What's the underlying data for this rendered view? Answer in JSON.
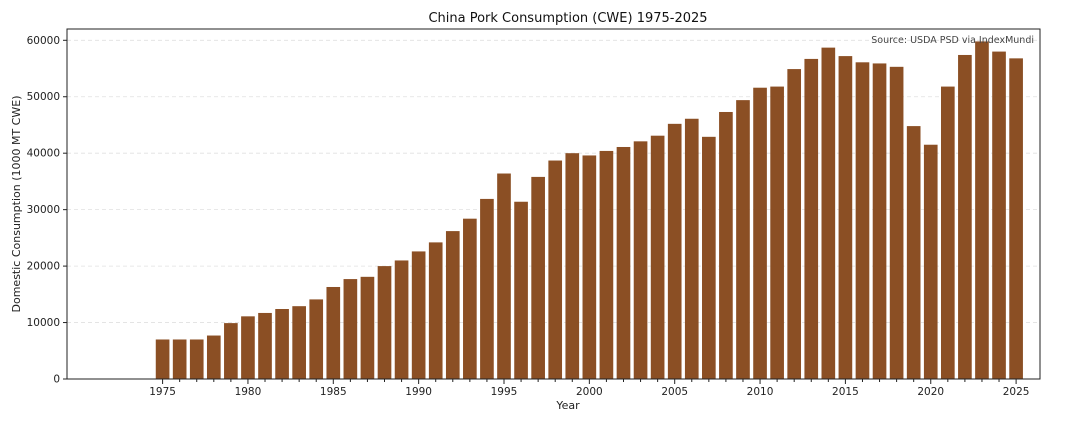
{
  "chart_data": {
    "type": "bar",
    "title": "China Pork Consumption (CWE) 1975-2025",
    "xlabel": "Year",
    "ylabel": "Domestic Consumption (1000 MT CWE)",
    "source_note": "Source: USDA PSD via IndexMundi",
    "ylim": [
      0,
      62000
    ],
    "xlim": [
      1969.4,
      2026.4
    ],
    "grid": true,
    "bar_color": "#8b4f24",
    "years": [
      1975,
      1976,
      1977,
      1978,
      1979,
      1980,
      1981,
      1982,
      1983,
      1984,
      1985,
      1986,
      1987,
      1988,
      1989,
      1990,
      1991,
      1992,
      1993,
      1994,
      1995,
      1996,
      1997,
      1998,
      1999,
      2000,
      2001,
      2002,
      2003,
      2004,
      2005,
      2006,
      2007,
      2008,
      2009,
      2010,
      2011,
      2012,
      2013,
      2014,
      2015,
      2016,
      2017,
      2018,
      2019,
      2020,
      2021,
      2022,
      2023,
      2024,
      2025
    ],
    "values": [
      7000,
      7000,
      7000,
      7700,
      9900,
      11100,
      11700,
      12400,
      12900,
      14100,
      16300,
      17700,
      18100,
      20000,
      21000,
      22600,
      24200,
      26200,
      28400,
      31900,
      36400,
      31400,
      35800,
      38700,
      40000,
      39600,
      40400,
      41100,
      42100,
      43100,
      45200,
      46100,
      42900,
      47300,
      49400,
      51600,
      51800,
      54900,
      56700,
      58700,
      57200,
      56100,
      55900,
      55300,
      44800,
      41500,
      51800,
      57400,
      59800,
      58000,
      56800
    ],
    "x_ticks": [
      1975,
      1980,
      1985,
      1990,
      1995,
      2000,
      2005,
      2010,
      2015,
      2020,
      2025
    ],
    "y_ticks": [
      0,
      10000,
      20000,
      30000,
      40000,
      50000,
      60000
    ]
  }
}
